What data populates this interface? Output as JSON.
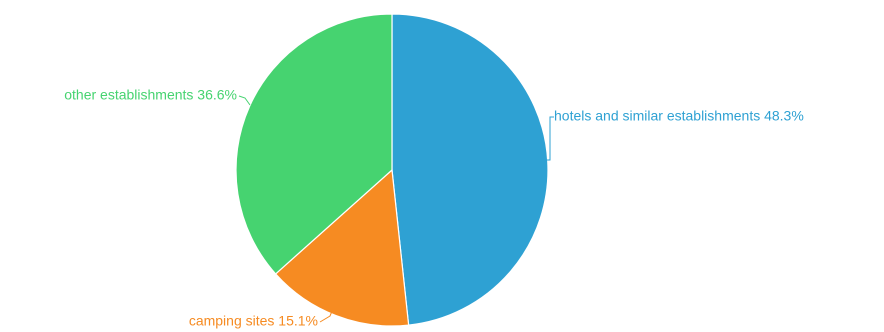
{
  "chart_data": {
    "type": "pie",
    "title": "",
    "slices": [
      {
        "label": "hotels and similar establishments",
        "value": 48.3,
        "value_text": "48.3%",
        "color": "#2ea1d3"
      },
      {
        "label": "camping sites",
        "value": 15.1,
        "value_text": "15.1%",
        "color": "#f68b22"
      },
      {
        "label": "other establishments",
        "value": 36.6,
        "value_text": "36.6%",
        "color": "#46d370"
      }
    ],
    "start_angle": "12 o'clock",
    "direction": "clockwise",
    "legend": "none",
    "labels": "outside with leader lines"
  }
}
